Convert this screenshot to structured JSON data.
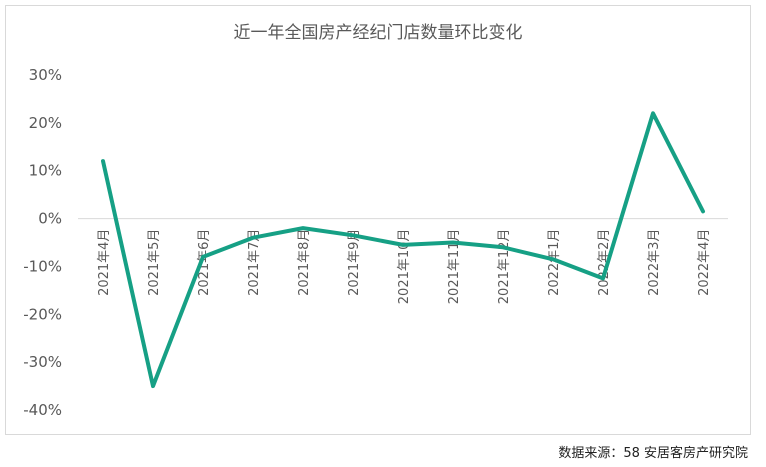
{
  "chart_data": {
    "type": "line",
    "title": "近一年全国房产经纪门店数量环比变化",
    "categories": [
      "2021年4月",
      "2021年5月",
      "2021年6月",
      "2021年7月",
      "2021年8月",
      "2021年9月",
      "2021年10月",
      "2021年11月",
      "2021年12月",
      "2022年1月",
      "2022年2月",
      "2022年3月",
      "2022年4月"
    ],
    "series": [
      {
        "values": [
          12,
          -35,
          -8,
          -4,
          -2,
          -3.5,
          -5.5,
          -5,
          -6,
          -8.5,
          -12.5,
          22,
          1.5
        ],
        "color": "#16a085"
      }
    ],
    "y_ticks": [
      "30%",
      "20%",
      "10%",
      "0%",
      "-10%",
      "-20%",
      "-30%",
      "-40%"
    ],
    "ylim": [
      -40,
      30
    ],
    "y_unit": "%",
    "grid": false,
    "legend": "none"
  },
  "source_note": "数据来源：58 安居客房产研究院"
}
